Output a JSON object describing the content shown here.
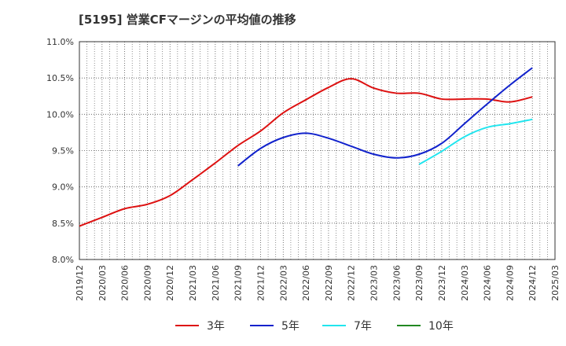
{
  "chart_data": {
    "type": "line",
    "title": "[5195]  営業CFマージンの平均値の推移",
    "xlabel": "",
    "ylabel": "",
    "x_ticks": [
      "2019/12",
      "2020/03",
      "2020/06",
      "2020/09",
      "2020/12",
      "2021/03",
      "2021/06",
      "2021/09",
      "2021/12",
      "2022/03",
      "2022/06",
      "2022/09",
      "2022/12",
      "2023/03",
      "2023/06",
      "2023/09",
      "2023/12",
      "2024/03",
      "2024/06",
      "2024/09",
      "2024/12",
      "2025/03"
    ],
    "y_ticks": [
      "8.0%",
      "8.5%",
      "9.0%",
      "9.5%",
      "10.0%",
      "10.5%",
      "11.0%"
    ],
    "ylim": [
      8.0,
      11.0
    ],
    "grid": true,
    "legend_position": "bottom",
    "series": [
      {
        "name": "3年",
        "color": "#dd1111",
        "points": [
          [
            "2019/12",
            8.46
          ],
          [
            "2020/03",
            8.58
          ],
          [
            "2020/06",
            8.7
          ],
          [
            "2020/09",
            8.76
          ],
          [
            "2020/12",
            8.88
          ],
          [
            "2021/03",
            9.1
          ],
          [
            "2021/06",
            9.33
          ],
          [
            "2021/09",
            9.57
          ],
          [
            "2021/12",
            9.77
          ],
          [
            "2022/03",
            10.02
          ],
          [
            "2022/06",
            10.2
          ],
          [
            "2022/09",
            10.37
          ],
          [
            "2022/12",
            10.49
          ],
          [
            "2023/03",
            10.36
          ],
          [
            "2023/06",
            10.29
          ],
          [
            "2023/09",
            10.29
          ],
          [
            "2023/12",
            10.21
          ],
          [
            "2024/03",
            10.21
          ],
          [
            "2024/06",
            10.21
          ],
          [
            "2024/09",
            10.17
          ],
          [
            "2024/12",
            10.24
          ]
        ]
      },
      {
        "name": "5年",
        "color": "#1122cc",
        "points": [
          [
            "2021/09",
            9.29
          ],
          [
            "2021/12",
            9.53
          ],
          [
            "2022/03",
            9.68
          ],
          [
            "2022/06",
            9.74
          ],
          [
            "2022/09",
            9.67
          ],
          [
            "2022/12",
            9.56
          ],
          [
            "2023/03",
            9.45
          ],
          [
            "2023/06",
            9.4
          ],
          [
            "2023/09",
            9.45
          ],
          [
            "2023/12",
            9.6
          ],
          [
            "2024/03",
            9.87
          ],
          [
            "2024/06",
            10.14
          ],
          [
            "2024/09",
            10.4
          ],
          [
            "2024/12",
            10.64
          ]
        ]
      },
      {
        "name": "7年",
        "color": "#22e5ee",
        "points": [
          [
            "2023/09",
            9.31
          ],
          [
            "2023/12",
            9.49
          ],
          [
            "2024/03",
            9.69
          ],
          [
            "2024/06",
            9.82
          ],
          [
            "2024/09",
            9.87
          ],
          [
            "2024/12",
            9.93
          ]
        ]
      },
      {
        "name": "10年",
        "color": "#228822",
        "points": []
      }
    ]
  }
}
